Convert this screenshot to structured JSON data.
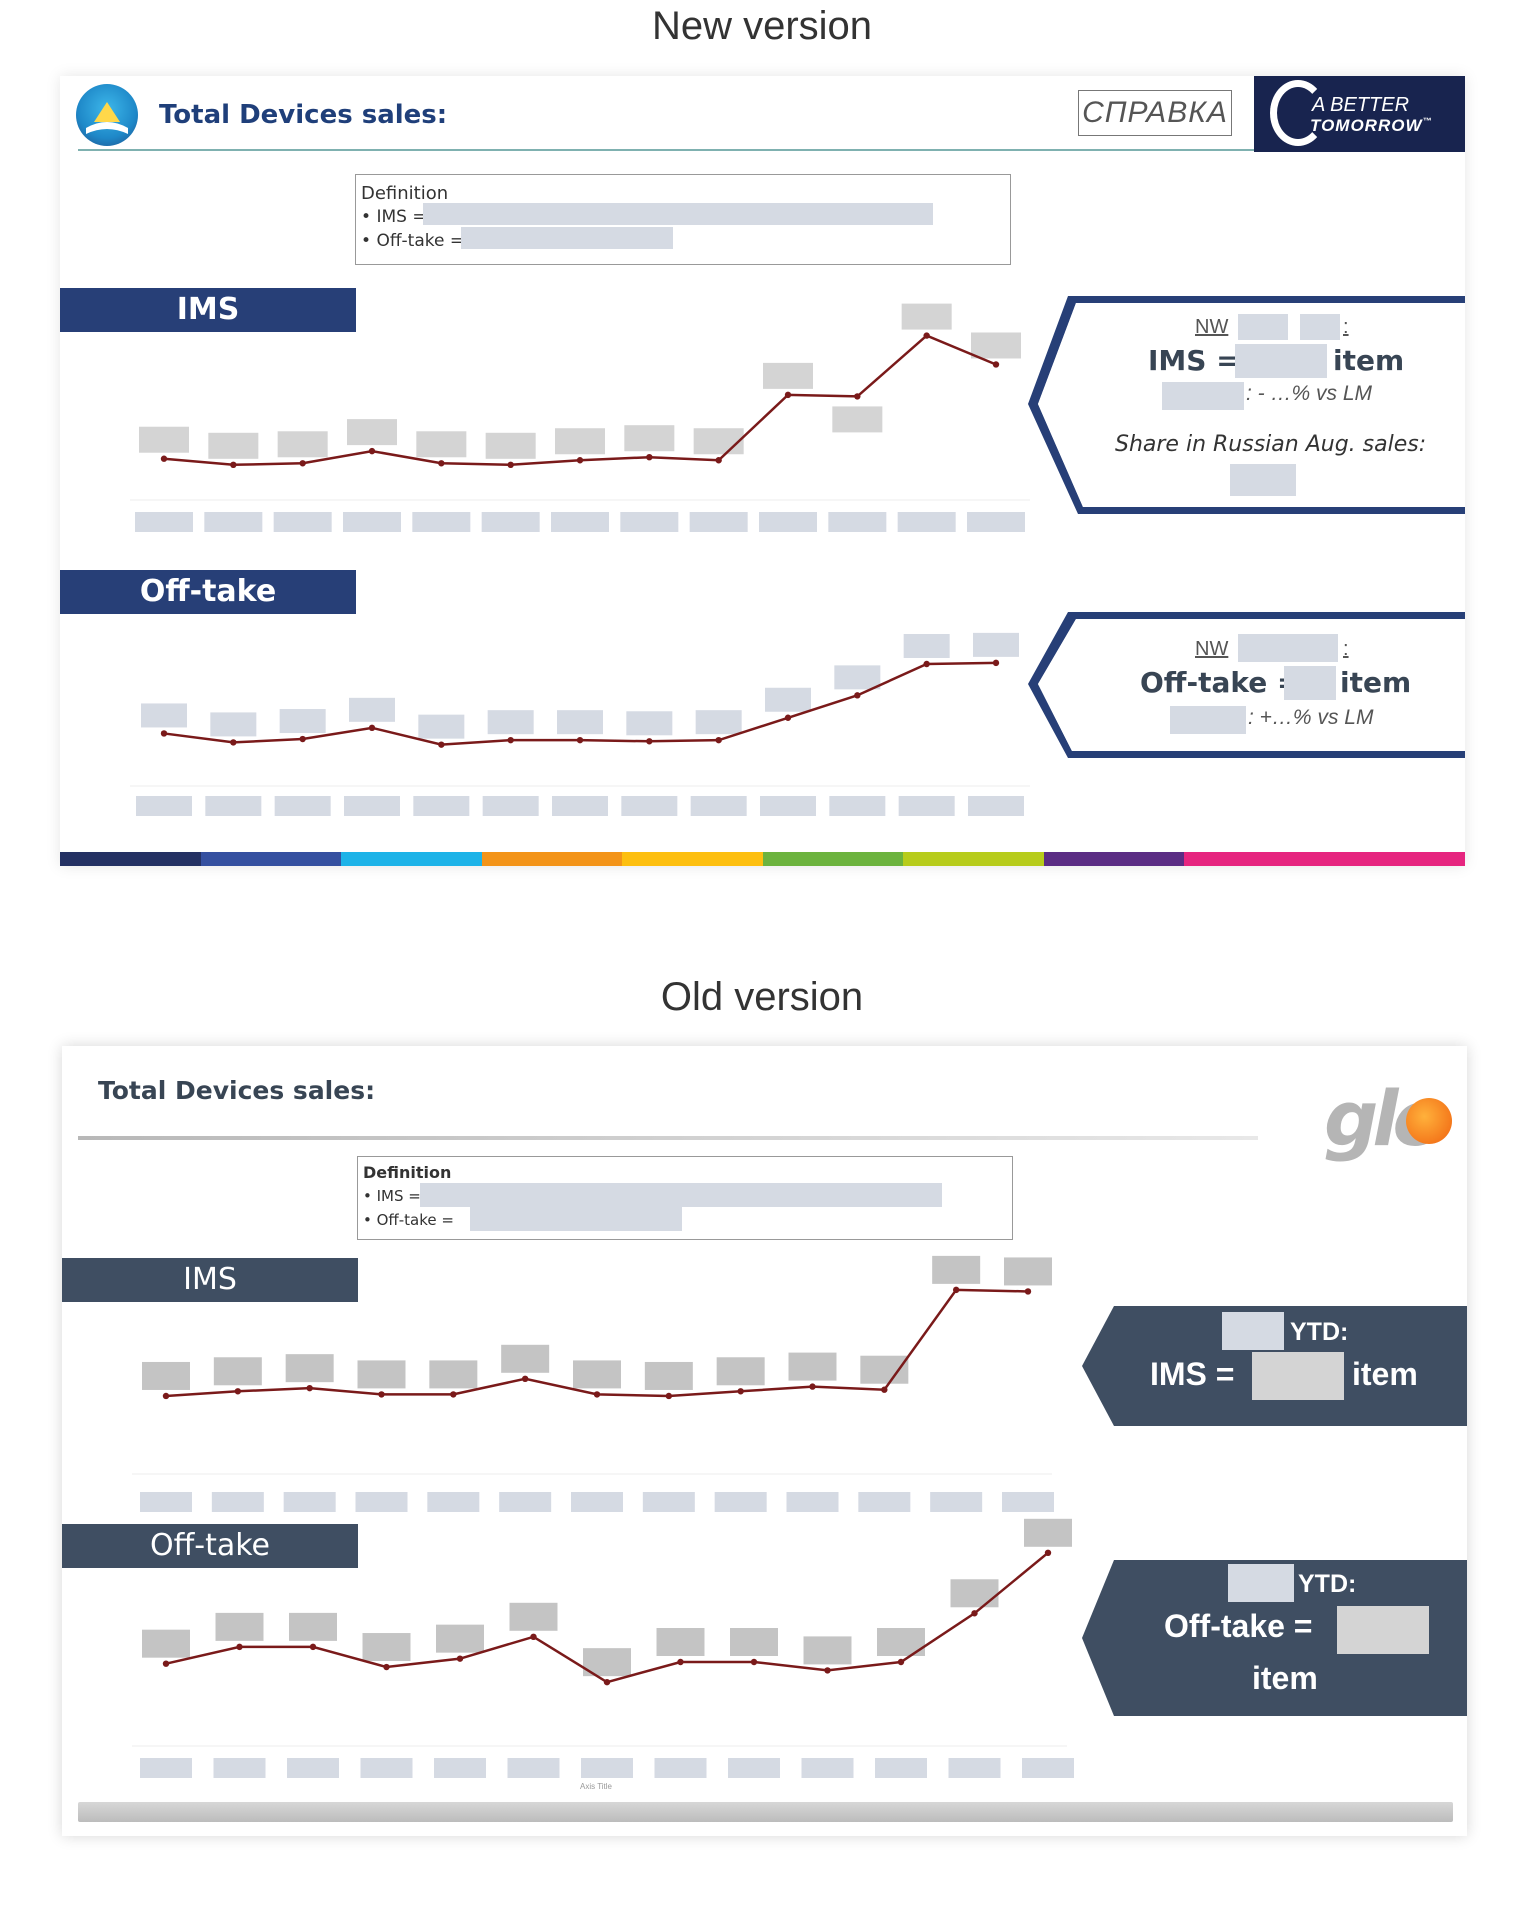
{
  "titles": {
    "new_version": "New version",
    "old_version": "Old version"
  },
  "new_slide": {
    "header_title": "Total Devices sales:",
    "spravka_button": "СПРАВКА",
    "brand_line1": "A BETTER",
    "brand_line2": "TOMORROW",
    "brand_tm": "™",
    "definition": {
      "title": "Definition",
      "ims_label": "IMS =",
      "offtake_label": "Off-take ="
    },
    "ims_section_label": "IMS",
    "offtake_section_label": "Off-take",
    "ims_callout": {
      "nw_label": "NW",
      "nw_colon": ":",
      "ims_eq": "IMS =",
      "unit": "item",
      "change_text": ": - …% vs LM",
      "share_text": "Share in Russian Aug. sales:"
    },
    "offtake_callout": {
      "nw_label": "NW",
      "nw_colon": ":",
      "offtake_eq": "Off-take =",
      "unit": "item",
      "change_text": ": +…% vs LM"
    },
    "color_bar": [
      "#243163",
      "#3550a0",
      "#1db3e8",
      "#f39419",
      "#fdbf10",
      "#6cb33e",
      "#b7cc1b",
      "#5b2d84",
      "#e6257f",
      "#e6257f"
    ]
  },
  "old_slide": {
    "header_title": "Total Devices sales:",
    "brand_logo_text": "glo",
    "definition": {
      "title": "Definition",
      "ims_label": "IMS =",
      "offtake_label": "Off-take ="
    },
    "ims_section_label": "IMS",
    "offtake_section_label": "Off-take",
    "ims_callout": {
      "ytd_label": "YTD:",
      "ims_eq": "IMS =",
      "unit": "item"
    },
    "offtake_callout": {
      "ytd_label": "YTD:",
      "offtake_eq": "Off-take =",
      "unit": "item"
    },
    "axis_title": "Axis Title"
  },
  "chart_data": [
    {
      "type": "line",
      "name_hint": "new-ims",
      "x": [
        1,
        2,
        3,
        4,
        5,
        6,
        7,
        8,
        9,
        10,
        11,
        12,
        13
      ],
      "values": [
        0.14,
        0.1,
        0.11,
        0.19,
        0.11,
        0.1,
        0.13,
        0.15,
        0.13,
        0.56,
        0.55,
        0.95,
        0.76
      ],
      "ylim": [
        0,
        1
      ],
      "color": "#7a1a1a",
      "labels_redacted": true
    },
    {
      "type": "line",
      "name_hint": "new-offtake",
      "x": [
        1,
        2,
        3,
        4,
        5,
        6,
        7,
        8,
        9,
        10,
        11,
        12,
        13
      ],
      "values": [
        0.13,
        0.05,
        0.08,
        0.18,
        0.03,
        0.07,
        0.07,
        0.06,
        0.07,
        0.27,
        0.47,
        0.75,
        0.76
      ],
      "ylim": [
        0,
        1
      ],
      "color": "#7a1a1a",
      "labels_redacted": true
    },
    {
      "type": "line",
      "name_hint": "old-ims",
      "x": [
        1,
        2,
        3,
        4,
        5,
        6,
        7,
        8,
        9,
        10,
        11,
        12,
        13
      ],
      "values": [
        0.09,
        0.12,
        0.14,
        0.1,
        0.1,
        0.2,
        0.1,
        0.09,
        0.12,
        0.15,
        0.13,
        0.77,
        0.76
      ],
      "ylim": [
        0,
        1
      ],
      "color": "#7a1a1a",
      "labels_redacted": true
    },
    {
      "type": "line",
      "name_hint": "old-offtake",
      "x": [
        1,
        2,
        3,
        4,
        5,
        6,
        7,
        8,
        9,
        10,
        11,
        12,
        13
      ],
      "values": [
        0.24,
        0.34,
        0.34,
        0.22,
        0.27,
        0.4,
        0.13,
        0.25,
        0.25,
        0.2,
        0.25,
        0.54,
        0.9
      ],
      "ylim": [
        0,
        1
      ],
      "color": "#7a1a1a",
      "labels_redacted": true
    }
  ]
}
